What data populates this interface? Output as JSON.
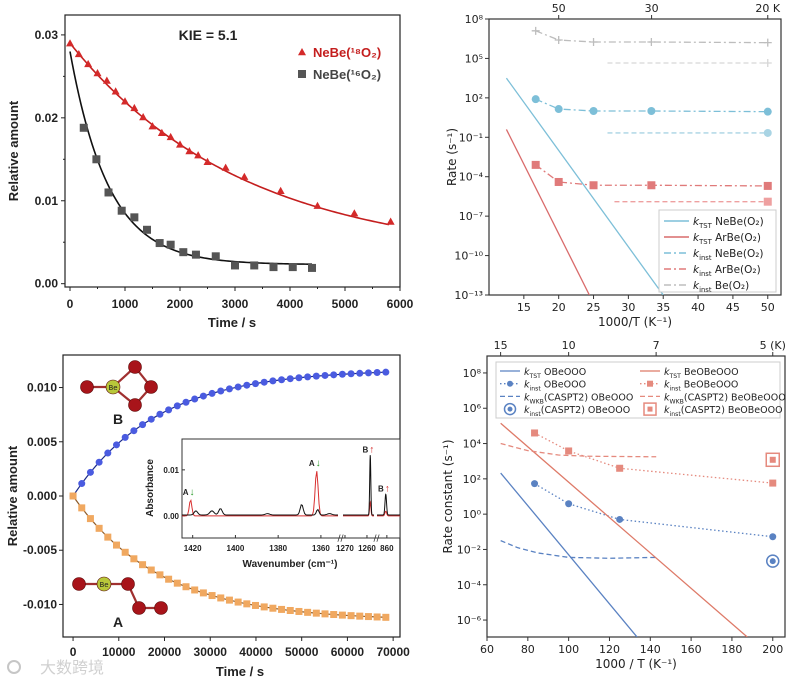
{
  "watermark": "大数跨境",
  "chart_data": [
    {
      "id": "kie-decay",
      "type": "scatter",
      "annotation": "KIE = 5.1",
      "xlabel": "Time / s",
      "ylabel": "Relative amount",
      "xlim": [
        -91,
        6000
      ],
      "ylim": [
        -0.0004,
        0.0324
      ],
      "xticks": [
        0,
        1000,
        2000,
        3000,
        4000,
        5000,
        6000
      ],
      "xtick_labels": [
        "0",
        "1000",
        "2000",
        "3000",
        "4000",
        "5000",
        "6000"
      ],
      "yticks": [
        0,
        0.01,
        0.02,
        0.03
      ],
      "ytick_labels": [
        "0.00",
        "0.01",
        "0.02",
        "0.03"
      ],
      "legend": "top-right",
      "series": [
        {
          "name": "NeBe(¹⁸O₂)",
          "color": "#d42a2a",
          "marker": "triangle",
          "x": [
            0,
            160,
            330,
            500,
            670,
            830,
            1000,
            1170,
            1330,
            1500,
            1670,
            1830,
            2000,
            2170,
            2330,
            2500,
            2830,
            3170,
            3830,
            4500,
            5170,
            5830
          ],
          "y": [
            0.029,
            0.0277,
            0.0265,
            0.0254,
            0.0245,
            0.0232,
            0.022,
            0.0212,
            0.0201,
            0.019,
            0.0182,
            0.0177,
            0.0168,
            0.016,
            0.0155,
            0.0147,
            0.014,
            0.0129,
            0.0112,
            0.0094,
            0.0085,
            0.0075
          ],
          "fit": {
            "A": 0.026,
            "tau": 3150,
            "c": 0.003,
            "xmax": 5830
          }
        },
        {
          "name": "NeBe(¹⁶O₂)",
          "color": "#555555",
          "marker": "square",
          "x": [
            250,
            480,
            700,
            940,
            1170,
            1400,
            1630,
            1830,
            2060,
            2290,
            2650,
            3000,
            3350,
            3700,
            4050,
            4400
          ],
          "y": [
            0.0188,
            0.015,
            0.011,
            0.0088,
            0.008,
            0.0065,
            0.0049,
            0.0047,
            0.0038,
            0.0035,
            0.0033,
            0.0022,
            0.0022,
            0.002,
            0.002,
            0.0019
          ],
          "fit": {
            "A": 0.0257,
            "tau": 703,
            "c": 0.0023,
            "xmax": 4400
          }
        }
      ]
    },
    {
      "id": "rate-vs-invT",
      "type": "line",
      "yscale": "log",
      "xlabel": "1000/T (K⁻¹)",
      "ylabel": "Rate (s⁻¹)",
      "xlim": [
        10,
        51.9
      ],
      "ylim_log10": [
        -13,
        8
      ],
      "xticks": [
        15,
        20,
        25,
        30,
        35,
        40,
        45,
        50
      ],
      "xtick_labels": [
        "15",
        "20",
        "25",
        "30",
        "35",
        "40",
        "45",
        "50"
      ],
      "yticks_log10": [
        8,
        5,
        2,
        -1,
        -4,
        -7,
        -10,
        -13
      ],
      "ytick_labels": [
        "10⁸",
        "10⁵",
        "10²",
        "10⁻¹",
        "10⁻⁴",
        "10⁻⁷",
        "10⁻¹⁰",
        "10⁻¹³"
      ],
      "top_ticks": [
        20,
        33.33,
        50
      ],
      "top_tick_labels": [
        "50",
        "30",
        "20 K"
      ],
      "legend": "bottom-right",
      "series": [
        {
          "k": "k",
          "sub": "TST",
          "name": " NeBe(O₂)",
          "color": "#7dbfd8",
          "style": "solid",
          "marker": "none",
          "x": [
            12.5,
            35
          ],
          "y_log10": [
            3.5,
            -13
          ]
        },
        {
          "k": "k",
          "sub": "TST",
          "name": " ArBe(O₂)",
          "color": "#d96b6b",
          "style": "solid",
          "marker": "none",
          "x": [
            12.5,
            24.4
          ],
          "y_log10": [
            -0.4,
            -13
          ]
        },
        {
          "k": "k",
          "sub": "inst",
          "name": " NeBe(O₂)",
          "color": "#7dbfd8",
          "style": "dashdot",
          "marker": "circle",
          "x": [
            16.7,
            20,
            25,
            33.3,
            50
          ],
          "y_log10": [
            1.9,
            1.15,
            1.0,
            1.0,
            0.95
          ]
        },
        {
          "k": "k",
          "sub": "inst",
          "name": " ArBe(O₂)",
          "color": "#e07a7a",
          "style": "dashdot",
          "marker": "square",
          "x": [
            16.7,
            20,
            25,
            33.3,
            50
          ],
          "y_log10": [
            -3.1,
            -4.4,
            -4.65,
            -4.65,
            -4.7
          ]
        },
        {
          "k": "k",
          "sub": "inst",
          "name": " Be(O₂)",
          "color": "#bdbdbd",
          "style": "dashdot",
          "marker": "plus",
          "x": [
            16.7,
            20,
            25,
            33.3,
            50
          ],
          "y_log10": [
            7.1,
            6.4,
            6.25,
            6.25,
            6.2
          ]
        }
      ],
      "extra_series": [
        {
          "color": "#a9d4e4",
          "style": "dashed",
          "marker": "circle",
          "x": [
            27,
            50
          ],
          "y_log10": [
            -0.67,
            -0.67
          ]
        },
        {
          "color": "#eea0a0",
          "style": "dashed",
          "marker": "square",
          "x": [
            28,
            50
          ],
          "y_log10": [
            -5.9,
            -5.9
          ]
        },
        {
          "color": "#d6d6d6",
          "style": "dashed",
          "marker": "plus",
          "x": [
            27,
            50
          ],
          "y_log10": [
            4.65,
            4.65
          ]
        }
      ]
    },
    {
      "id": "isomerization-kinetics",
      "type": "scatter",
      "xlabel": "Time / s",
      "ylabel": "Relative amount",
      "xlim": [
        -2200,
        71500
      ],
      "ylim": [
        -0.013,
        0.013
      ],
      "xticks": [
        0,
        10000,
        20000,
        30000,
        40000,
        50000,
        60000,
        70000
      ],
      "xtick_labels": [
        "0",
        "10000",
        "20000",
        "30000",
        "40000",
        "50000",
        "60000",
        "70000"
      ],
      "yticks": [
        0.01,
        0.005,
        0,
        -0.005,
        -0.01
      ],
      "ytick_labels": [
        "0.010",
        "0.005",
        "0.000",
        "-0.005",
        "-0.010"
      ],
      "molecule_labels": {
        "B": "B",
        "A": "A",
        "Be": "Be"
      },
      "series": [
        {
          "name": "B",
          "color": "#4a5be0",
          "line": "#1b2a8a",
          "marker": "circle",
          "model": {
            "A": 0.0117,
            "tau": 18400
          },
          "sample_step": 1900,
          "sample_max": 68400
        },
        {
          "name": "A",
          "color": "#f0a860",
          "line": "#8a5a2a",
          "marker": "square",
          "model": {
            "A": -0.0115,
            "tau": 19000
          },
          "sample_step": 1900,
          "sample_max": 68400
        }
      ],
      "inset": {
        "ylabel": "Absorbance",
        "xlabel": "Wavenumber (cm⁻¹)",
        "ylim": [
          -0.0048,
          0.0167
        ],
        "yticks": [
          0,
          0.01
        ],
        "ytick_labels": [
          "0.00",
          "0.01"
        ],
        "segments": [
          {
            "xlim": [
              1425,
              1352
            ],
            "xticks": [
              1420,
              1400,
              1380,
              1360
            ],
            "xtick_labels": [
              "1420",
              "1400",
              "1380",
              "1360"
            ],
            "black_peaks": [
              [
                1418.5,
                0.0009,
                0.8
              ],
              [
                1411,
                0.0009,
                1
              ],
              [
                1407,
                0.0014,
                0.8
              ],
              [
                1385,
                0.0003,
                1
              ],
              [
                1369,
                0.0023,
                0.7
              ],
              [
                1361.5,
                0.0012,
                0.6
              ],
              [
                1356,
                0.0003,
                1
              ]
            ],
            "red_peaks": [
              [
                1421,
                0.0035,
                0.6
              ],
              [
                1362,
                0.0098,
                0.7
              ]
            ]
          },
          {
            "xlim": [
              1270.9,
              1256.8
            ],
            "xticks": [
              1270,
              1260
            ],
            "xtick_labels": [
              "1270",
              "1260"
            ],
            "black_peaks": [
              [
                1258.5,
                0.013,
                0.25
              ]
            ],
            "red_peaks": [
              [
                1258.5,
                0.003,
                0.3
              ]
            ]
          },
          {
            "xlim": [
              864.5,
              854
            ],
            "xticks": [
              860
            ],
            "xtick_labels": [
              "860"
            ],
            "black_peaks": [
              [
                860.5,
                0.0045,
                0.35
              ]
            ],
            "red_peaks": [
              [
                860.5,
                0.001,
                0.4
              ]
            ]
          }
        ],
        "annotations": [
          {
            "label": "A",
            "arrow": "↓",
            "arrow_color": "#2a9a2a",
            "seg": 0,
            "x": 1421,
            "y": 0.0045
          },
          {
            "label": "A",
            "arrow": "↓",
            "arrow_color": "#2a9a2a",
            "seg": 0,
            "x": 1362,
            "y": 0.0108
          },
          {
            "label": "B",
            "arrow": "↑",
            "arrow_color": "#d42a2a",
            "seg": 1,
            "x": 1258.5,
            "y": 0.0138
          },
          {
            "label": "B",
            "arrow": "↑",
            "arrow_color": "#d42a2a",
            "seg": 2,
            "x": 860.5,
            "y": 0.0053
          }
        ]
      }
    },
    {
      "id": "rate-constant-vs-invT",
      "type": "line",
      "yscale": "log",
      "xlabel": "1000 / T  (K⁻¹)",
      "ylabel": "Rate constant (s⁻¹)",
      "xlim": [
        60,
        206
      ],
      "ylim_log10": [
        -6.96,
        8.96
      ],
      "xticks": [
        60,
        80,
        100,
        120,
        140,
        160,
        180,
        200
      ],
      "xtick_labels": [
        "60",
        "80",
        "100",
        "120",
        "140",
        "160",
        "180",
        "200"
      ],
      "yticks_log10": [
        8,
        6,
        4,
        2,
        0,
        -2,
        -4,
        -6
      ],
      "ytick_labels": [
        "10⁸",
        "10⁶",
        "10⁴",
        "10²",
        "10⁰",
        "10⁻²",
        "10⁻⁴",
        "10⁻⁶"
      ],
      "top_ticks": [
        66.67,
        100,
        142.86,
        200
      ],
      "top_tick_labels": [
        "15",
        "10",
        "7",
        "5 (K)"
      ],
      "legend": "top",
      "series": [
        {
          "k": "k",
          "sub": "TST",
          "name": " OBeOOO",
          "color": "#5a82c2",
          "style": "solid",
          "marker": "none",
          "x": [
            66.7,
            133.5
          ],
          "y_log10": [
            2.33,
            -6.96
          ]
        },
        {
          "k": "k",
          "sub": "inst",
          "name": " OBeOOO",
          "color": "#5a82c2",
          "style": "dotted",
          "marker": "circle",
          "x": [
            83.3,
            100,
            125,
            200
          ],
          "y_log10": [
            1.73,
            0.59,
            -0.3,
            -1.28
          ]
        },
        {
          "k": "k",
          "sub": "WKB",
          "name": "(CASPT2) OBeOOO",
          "color": "#5a82c2",
          "style": "dashed",
          "marker": "none",
          "x": [
            66.7,
            75,
            85,
            100,
            120,
            142.9
          ],
          "y_log10": [
            -1.5,
            -1.9,
            -2.2,
            -2.45,
            -2.5,
            -2.45
          ]
        },
        {
          "k": "k",
          "sub": "inst",
          "name": "(CASPT2) OBeOOO",
          "color": "#5a82c2",
          "style": "none",
          "marker": "ring",
          "x": [
            200
          ],
          "y_log10": [
            -2.66
          ]
        },
        {
          "k": "k",
          "sub": "TST",
          "name": " BeOBeOOO",
          "color": "#de7a68",
          "style": "solid",
          "marker": "none",
          "x": [
            66.7,
            187.5
          ],
          "y_log10": [
            5.15,
            -6.96
          ]
        },
        {
          "k": "k",
          "sub": "inst",
          "name": " BeOBeOOO",
          "color": "#e58a7e",
          "style": "dotted",
          "marker": "square",
          "x": [
            83.3,
            100,
            125,
            200
          ],
          "y_log10": [
            4.6,
            3.58,
            2.6,
            1.76
          ]
        },
        {
          "k": "k",
          "sub": "WKB",
          "name": "(CASPT2) BeOBeOOO",
          "color": "#e58a7e",
          "style": "dashed",
          "marker": "none",
          "x": [
            66.7,
            80,
            95,
            110,
            142.9
          ],
          "y_log10": [
            4.0,
            3.6,
            3.35,
            3.28,
            3.25
          ]
        },
        {
          "k": "k",
          "sub": "inst",
          "name": "(CASPT2) BeOBeOOO",
          "color": "#e58a7e",
          "style": "none",
          "marker": "boxsq",
          "x": [
            200
          ],
          "y_log10": [
            3.08
          ]
        }
      ]
    }
  ]
}
